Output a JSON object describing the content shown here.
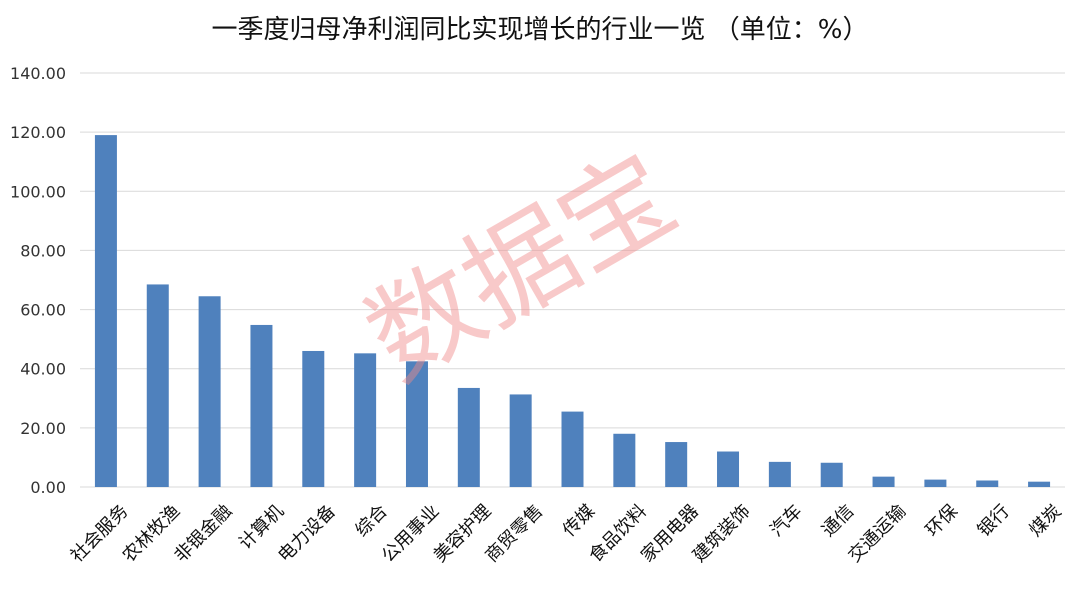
{
  "chart_data": {
    "type": "bar",
    "title": "一季度归母净利润同比实现增长的行业一览  （单位：%）",
    "xlabel": "",
    "ylabel": "",
    "ylim": [
      0,
      140
    ],
    "yticks": [
      "0.00",
      "20.00",
      "40.00",
      "60.00",
      "80.00",
      "100.00",
      "120.00",
      "140.00"
    ],
    "grid": true,
    "legend": "none",
    "bar_color": "#4f81bd",
    "grid_color": "#d9d9d9",
    "categories": [
      "社会服务",
      "农林牧渔",
      "非银金融",
      "计算机",
      "电力设备",
      "综合",
      "公用事业",
      "美容护理",
      "商贸零售",
      "传媒",
      "食品饮料",
      "家用电器",
      "建筑装饰",
      "汽车",
      "通信",
      "交通运输",
      "环保",
      "银行",
      "煤炭"
    ],
    "values": [
      119.0,
      68.5,
      64.5,
      54.8,
      46.0,
      45.2,
      42.5,
      33.5,
      31.3,
      25.5,
      18.0,
      15.2,
      12.0,
      8.5,
      8.2,
      3.5,
      2.5,
      2.2,
      1.8
    ]
  },
  "watermark": "数据宝"
}
